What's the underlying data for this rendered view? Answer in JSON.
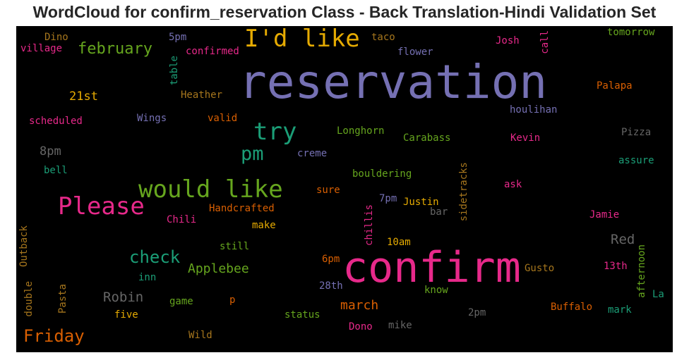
{
  "title": "WordCloud for confirm_reservation Class - Back Translation-Hindi Validation Set",
  "words": [
    {
      "text": "reservation",
      "color": "#7570b3"
    },
    {
      "text": "confirm",
      "color": "#e7298a"
    },
    {
      "text": "I'd like",
      "color": "#e6ab02"
    },
    {
      "text": "would like",
      "color": "#66a61e"
    },
    {
      "text": "Please",
      "color": "#e7298a"
    },
    {
      "text": "try",
      "color": "#1b9e77"
    },
    {
      "text": "pm",
      "color": "#1b9e77"
    },
    {
      "text": "february",
      "color": "#66a61e"
    },
    {
      "text": "check",
      "color": "#1b9e77"
    },
    {
      "text": "Friday",
      "color": "#d95f02"
    },
    {
      "text": "Applebee",
      "color": "#66a61e"
    },
    {
      "text": "Robin",
      "color": "#666666"
    },
    {
      "text": "march",
      "color": "#d95f02"
    },
    {
      "text": "Red",
      "color": "#666666"
    },
    {
      "text": "21st",
      "color": "#e6ab02"
    },
    {
      "text": "8pm",
      "color": "#666666"
    },
    {
      "text": "Dino",
      "color": "#a6761d"
    },
    {
      "text": "village",
      "color": "#e7298a"
    },
    {
      "text": "5pm",
      "color": "#7570b3"
    },
    {
      "text": "confirmed",
      "color": "#e7298a"
    },
    {
      "text": "taco",
      "color": "#a6761d"
    },
    {
      "text": "flower",
      "color": "#7570b3"
    },
    {
      "text": "Josh",
      "color": "#e7298a"
    },
    {
      "text": "call",
      "color": "#e7298a"
    },
    {
      "text": "tomorrow",
      "color": "#66a61e"
    },
    {
      "text": "table",
      "color": "#1b9e77"
    },
    {
      "text": "Heather",
      "color": "#a6761d"
    },
    {
      "text": "Palapa",
      "color": "#d95f02"
    },
    {
      "text": "scheduled",
      "color": "#e7298a"
    },
    {
      "text": "Wings",
      "color": "#7570b3"
    },
    {
      "text": "valid",
      "color": "#d95f02"
    },
    {
      "text": "houlihan",
      "color": "#7570b3"
    },
    {
      "text": "Longhorn",
      "color": "#66a61e"
    },
    {
      "text": "Carabass",
      "color": "#66a61e"
    },
    {
      "text": "Kevin",
      "color": "#e7298a"
    },
    {
      "text": "Pizza",
      "color": "#666666"
    },
    {
      "text": "creme",
      "color": "#7570b3"
    },
    {
      "text": "assure",
      "color": "#1b9e77"
    },
    {
      "text": "bell",
      "color": "#1b9e77"
    },
    {
      "text": "bouldering",
      "color": "#66a61e"
    },
    {
      "text": "sidetracks",
      "color": "#a6761d"
    },
    {
      "text": "sure",
      "color": "#d95f02"
    },
    {
      "text": "ask",
      "color": "#e7298a"
    },
    {
      "text": "Handcrafted",
      "color": "#d95f02"
    },
    {
      "text": "7pm",
      "color": "#7570b3"
    },
    {
      "text": "Justin",
      "color": "#e6ab02"
    },
    {
      "text": "bar",
      "color": "#666666"
    },
    {
      "text": "Jamie",
      "color": "#e7298a"
    },
    {
      "text": "Chili",
      "color": "#e7298a"
    },
    {
      "text": "make",
      "color": "#e6ab02"
    },
    {
      "text": "chillis",
      "color": "#e7298a"
    },
    {
      "text": "Outback",
      "color": "#a6761d"
    },
    {
      "text": "still",
      "color": "#66a61e"
    },
    {
      "text": "10am",
      "color": "#e6ab02"
    },
    {
      "text": "afternoon",
      "color": "#66a61e"
    },
    {
      "text": "6pm",
      "color": "#d95f02"
    },
    {
      "text": "inn",
      "color": "#1b9e77"
    },
    {
      "text": "Gusto",
      "color": "#a6761d"
    },
    {
      "text": "13th",
      "color": "#e7298a"
    },
    {
      "text": "double",
      "color": "#a6761d"
    },
    {
      "text": "Pasta",
      "color": "#a6761d"
    },
    {
      "text": "28th",
      "color": "#7570b3"
    },
    {
      "text": "know",
      "color": "#66a61e"
    },
    {
      "text": "La",
      "color": "#1b9e77"
    },
    {
      "text": "game",
      "color": "#66a61e"
    },
    {
      "text": "p",
      "color": "#d95f02"
    },
    {
      "text": "Buffalo",
      "color": "#d95f02"
    },
    {
      "text": "mark",
      "color": "#1b9e77"
    },
    {
      "text": "five",
      "color": "#e6ab02"
    },
    {
      "text": "status",
      "color": "#66a61e"
    },
    {
      "text": "2pm",
      "color": "#666666"
    },
    {
      "text": "Dono",
      "color": "#e7298a"
    },
    {
      "text": "mike",
      "color": "#666666"
    },
    {
      "text": "Wild",
      "color": "#a6761d"
    }
  ]
}
